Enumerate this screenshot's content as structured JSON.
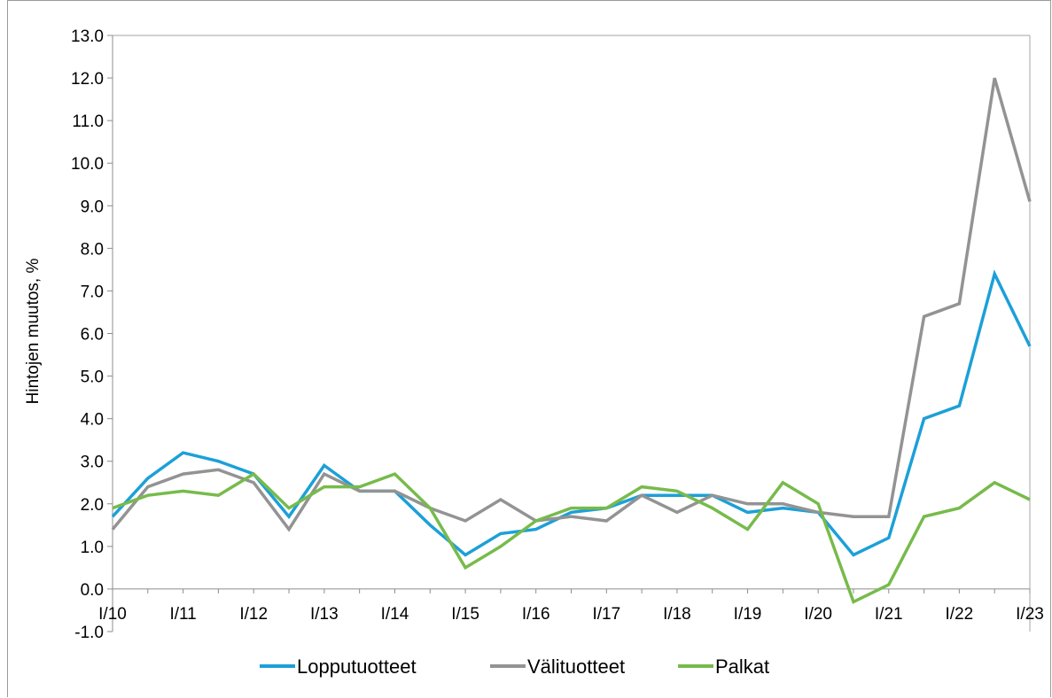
{
  "chart_data": {
    "type": "line",
    "ylabel": "Hintojen muutos, %",
    "ylim": [
      -1.0,
      13.0
    ],
    "y_ticks": [
      "13.0",
      "12.0",
      "11.0",
      "10.0",
      "9.0",
      "8.0",
      "7.0",
      "6.0",
      "5.0",
      "4.0",
      "3.0",
      "2.0",
      "1.0",
      "0.0",
      "-1.0"
    ],
    "x_tick_labels": [
      "I/10",
      "I/11",
      "I/12",
      "I/13",
      "I/14",
      "I/15",
      "I/16",
      "I/17",
      "I/18",
      "I/19",
      "I/20",
      "I/21",
      "I/22",
      "I/23"
    ],
    "x": [
      "I/10",
      "III/10",
      "I/11",
      "III/11",
      "I/12",
      "III/12",
      "I/13",
      "III/13",
      "I/14",
      "III/14",
      "I/15",
      "III/15",
      "I/16",
      "III/16",
      "I/17",
      "III/17",
      "I/18",
      "III/18",
      "I/19",
      "III/19",
      "I/20",
      "III/20",
      "I/21",
      "III/21",
      "I/22",
      "III/22",
      "I/23"
    ],
    "grid": false,
    "legend_position": "bottom",
    "series": [
      {
        "name": "Lopputuotteet",
        "color": "#1ca0d8",
        "values": [
          1.7,
          2.6,
          3.2,
          3.0,
          2.7,
          1.7,
          2.9,
          2.3,
          2.3,
          1.5,
          0.8,
          1.3,
          1.4,
          1.8,
          1.9,
          2.2,
          2.2,
          2.2,
          1.8,
          1.9,
          1.8,
          0.8,
          1.2,
          4.0,
          4.3,
          7.4,
          5.7
        ]
      },
      {
        "name": "Välituotteet",
        "color": "#939393",
        "values": [
          1.4,
          2.4,
          2.7,
          2.8,
          2.5,
          1.4,
          2.7,
          2.3,
          2.3,
          1.9,
          1.6,
          2.1,
          1.6,
          1.7,
          1.6,
          2.2,
          1.8,
          2.2,
          2.0,
          2.0,
          1.8,
          1.7,
          1.7,
          6.4,
          6.7,
          12.0,
          9.1
        ]
      },
      {
        "name": "Palkat",
        "color": "#77bb4b",
        "values": [
          1.9,
          2.2,
          2.3,
          2.2,
          2.7,
          1.9,
          2.4,
          2.4,
          2.7,
          1.9,
          0.5,
          1.0,
          1.6,
          1.9,
          1.9,
          2.4,
          2.3,
          1.9,
          1.4,
          2.5,
          2.0,
          -0.3,
          0.1,
          1.7,
          1.9,
          2.5,
          2.1
        ]
      }
    ]
  }
}
